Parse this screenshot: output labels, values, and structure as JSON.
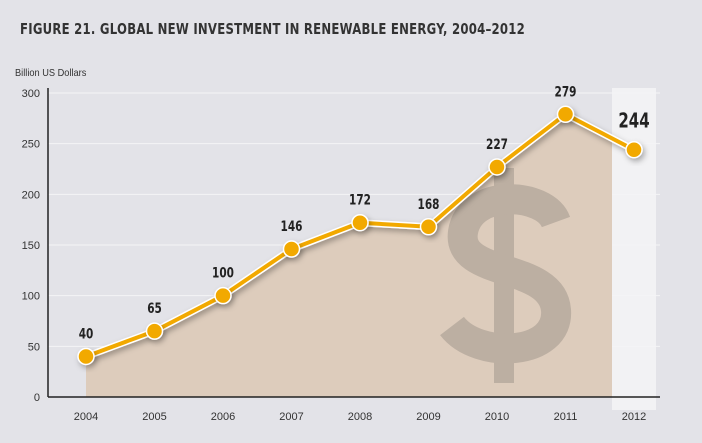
{
  "chart_data": {
    "type": "area",
    "title": "FIGURE 21. GLOBAL NEW INVESTMENT IN RENEWABLE ENERGY, 2004–2012",
    "ylabel": "Billion US Dollars",
    "xlabel": "",
    "categories": [
      "2004",
      "2005",
      "2006",
      "2007",
      "2008",
      "2009",
      "2010",
      "2011",
      "2012"
    ],
    "values": [
      40,
      65,
      100,
      146,
      172,
      168,
      227,
      279,
      244
    ],
    "data_labels": [
      "40",
      "65",
      "100",
      "146",
      "172",
      "168",
      "227",
      "279",
      "244"
    ],
    "yticks": [
      "0",
      "50",
      "100",
      "150",
      "200",
      "250",
      "300"
    ],
    "ylim": [
      0,
      300
    ],
    "grid": true,
    "highlighted_category": "2012",
    "watermark_symbol": "$",
    "colors": {
      "line": "#f2a900",
      "area": "#ddccbc",
      "highlight": "#f2f2f4",
      "watermark": "#b7aa9e",
      "background": "#e3e3e8"
    }
  }
}
